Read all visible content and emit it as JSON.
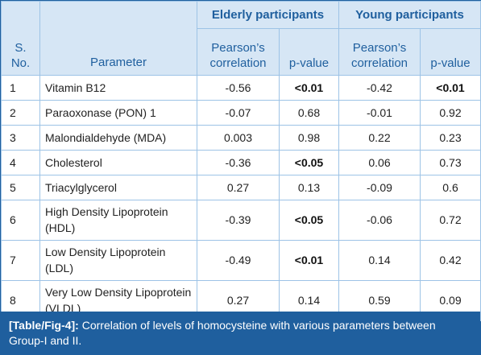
{
  "header": {
    "sno": "S. No.",
    "parameter": "Parameter",
    "group_elderly": "Elderly participants",
    "group_young": "Young participants",
    "pearson": "Pearson’s correlation",
    "pvalue": "p-value"
  },
  "rows": [
    {
      "sno": "1",
      "param": "Vitamin B12",
      "e_r": "-0.56",
      "e_p": "<0.01",
      "y_r": "-0.42",
      "y_p": "<0.01"
    },
    {
      "sno": "2",
      "param": "Paraoxonase (PON) 1",
      "e_r": "-0.07",
      "e_p": "0.68",
      "y_r": "-0.01",
      "y_p": "0.92"
    },
    {
      "sno": "3",
      "param": "Malondialdehyde (MDA)",
      "e_r": "0.003",
      "e_p": "0.98",
      "y_r": "0.22",
      "y_p": "0.23"
    },
    {
      "sno": "4",
      "param": "Cholesterol",
      "e_r": "-0.36",
      "e_p": "<0.05",
      "y_r": "0.06",
      "y_p": "0.73"
    },
    {
      "sno": "5",
      "param": "Triacylglycerol",
      "e_r": "0.27",
      "e_p": "0.13",
      "y_r": "-0.09",
      "y_p": "0.6"
    },
    {
      "sno": "6",
      "param": "High Density Lipoprotein (HDL)",
      "e_r": "-0.39",
      "e_p": "<0.05",
      "y_r": "-0.06",
      "y_p": "0.72"
    },
    {
      "sno": "7",
      "param": "Low Density Lipoprotein (LDL)",
      "e_r": "-0.49",
      "e_p": "<0.01",
      "y_r": "0.14",
      "y_p": "0.42"
    },
    {
      "sno": "8",
      "param": "Very Low Density Lipoprotein (VLDL)",
      "e_r": "0.27",
      "e_p": "0.14",
      "y_r": "0.59",
      "y_p": "0.09"
    }
  ],
  "caption": {
    "tag": "[Table/Fig-4]:",
    "text": " Correlation of levels of homocysteine with various parameters between Group-I and II."
  },
  "colors": {
    "header_bg": "#d6e6f5",
    "header_text": "#1f5f9e",
    "caption_bg": "#1f5f9e",
    "grid": "#9dc3e6"
  }
}
